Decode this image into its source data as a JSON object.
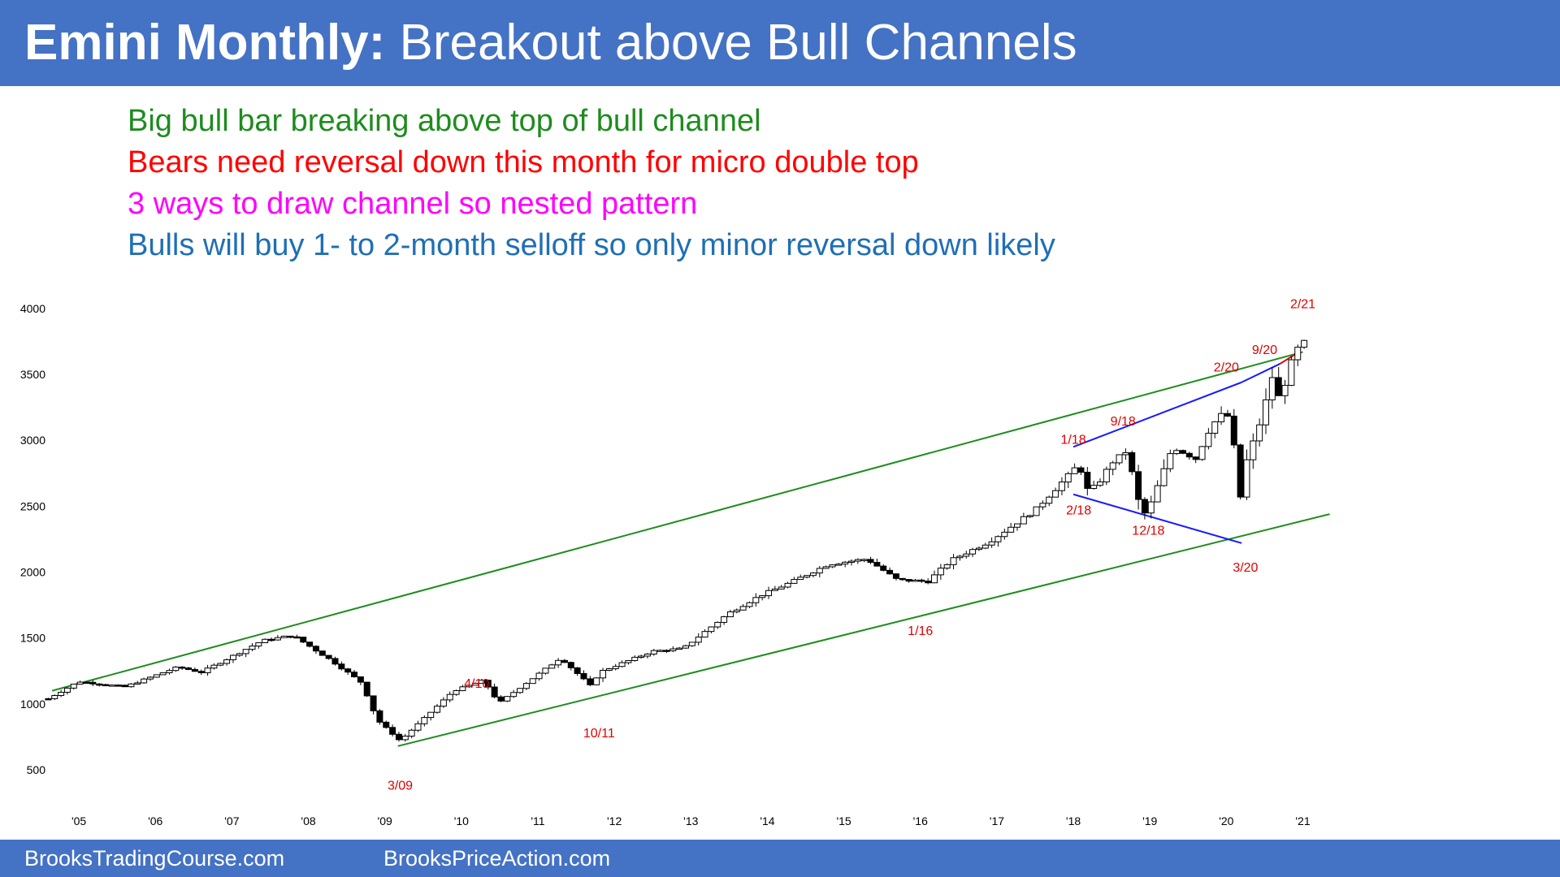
{
  "header": {
    "title_bold": "Emini Monthly:",
    "title_rest": "Breakout above Bull Channels"
  },
  "bullets": [
    {
      "text": "Big bull bar breaking above top of bull channel",
      "color": "#1e8c1e"
    },
    {
      "text": "Bears need reversal down this month for micro double top",
      "color": "#ff0000"
    },
    {
      "text": "3 ways to draw channel so nested pattern",
      "color": "#ff00ff"
    },
    {
      "text": "Bulls will buy 1- to 2-month selloff so only minor reversal down likely",
      "color": "#1f6fb5"
    }
  ],
  "footer": {
    "left": "BrooksTradingCourse.com",
    "right": "BrooksPriceAction.com"
  },
  "colors": {
    "header_bg": "#4472c4",
    "bull_channel": "#1e8c1e",
    "triangle": "#1a1aff",
    "micro_channel": "#e00000",
    "label": "#e00000"
  },
  "chart_data": {
    "type": "candlestick",
    "title": "Emini Monthly",
    "x_tick_labels": [
      "'05",
      "'06",
      "'07",
      "'08",
      "'09",
      "'10",
      "'11",
      "'12",
      "'13",
      "'14",
      "'15",
      "'16",
      "'17",
      "'18",
      "'19",
      "'20",
      "'21"
    ],
    "y_tick_labels": [
      "4000",
      "3500",
      "3000",
      "2500",
      "2000",
      "1500",
      "1000",
      "500"
    ],
    "ylim": [
      180,
      4110
    ],
    "xlim": [
      2004.5,
      2021.6
    ],
    "grid": false,
    "close_path": [
      [
        2004.6,
        1040
      ],
      [
        2005.0,
        1170
      ],
      [
        2005.6,
        1130
      ],
      [
        2006.3,
        1280
      ],
      [
        2006.6,
        1240
      ],
      [
        2007.4,
        1480
      ],
      [
        2007.8,
        1520
      ],
      [
        2008.3,
        1330
      ],
      [
        2008.7,
        1160
      ],
      [
        2008.9,
        880
      ],
      [
        2009.2,
        720
      ],
      [
        2009.9,
        1100
      ],
      [
        2010.3,
        1180
      ],
      [
        2010.4,
        1080
      ],
      [
        2010.5,
        1010
      ],
      [
        2011.3,
        1350
      ],
      [
        2011.7,
        1130
      ],
      [
        2011.8,
        1240
      ],
      [
        2012.5,
        1400
      ],
      [
        2012.9,
        1420
      ],
      [
        2013.5,
        1690
      ],
      [
        2013.9,
        1820
      ],
      [
        2014.3,
        1920
      ],
      [
        2014.8,
        2060
      ],
      [
        2015.3,
        2100
      ],
      [
        2015.7,
        1940
      ],
      [
        2016.1,
        1930
      ],
      [
        2016.4,
        2090
      ],
      [
        2016.9,
        2230
      ],
      [
        2017.5,
        2470
      ],
      [
        2017.98,
        2760
      ],
      [
        2018.08,
        2830
      ],
      [
        2018.15,
        2620
      ],
      [
        2018.3,
        2650
      ],
      [
        2018.5,
        2830
      ],
      [
        2018.7,
        2920
      ],
      [
        2018.9,
        2420
      ],
      [
        2019.0,
        2500
      ],
      [
        2019.3,
        2950
      ],
      [
        2019.6,
        2860
      ],
      [
        2019.8,
        3110
      ],
      [
        2020.0,
        3230
      ],
      [
        2020.1,
        2950
      ],
      [
        2020.17,
        2520
      ],
      [
        2020.25,
        2820
      ],
      [
        2020.45,
        3150
      ],
      [
        2020.6,
        3480
      ],
      [
        2020.7,
        3300
      ],
      [
        2020.8,
        3500
      ],
      [
        2020.9,
        3680
      ],
      [
        2021.0,
        3720
      ],
      [
        2021.08,
        3810
      ]
    ],
    "lines": [
      {
        "name": "bull channel top",
        "color": "green",
        "points": [
          [
            2004.65,
            1100
          ],
          [
            2021.0,
            3670
          ]
        ]
      },
      {
        "name": "bull channel bottom",
        "color": "green",
        "points": [
          [
            2009.17,
            680
          ],
          [
            2021.35,
            2440
          ]
        ]
      },
      {
        "name": "triangle upper",
        "color": "blue",
        "points": [
          [
            2018.0,
            2950
          ],
          [
            2020.2,
            3440
          ]
        ]
      },
      {
        "name": "triangle upper 2",
        "color": "blue",
        "points": [
          [
            2020.2,
            3440
          ],
          [
            2020.7,
            3580
          ]
        ]
      },
      {
        "name": "triangle lower",
        "color": "blue",
        "points": [
          [
            2018.0,
            2590
          ],
          [
            2020.2,
            2220
          ]
        ]
      },
      {
        "name": "micro channel",
        "color": "red",
        "points": [
          [
            2020.7,
            3580
          ],
          [
            2020.95,
            3670
          ]
        ]
      }
    ],
    "annotations": [
      {
        "text": "2/21",
        "x": 2021.0,
        "y": 4040
      },
      {
        "text": "9/20",
        "x": 2020.5,
        "y": 3690
      },
      {
        "text": "2/20",
        "x": 2020.0,
        "y": 3560
      },
      {
        "text": "9/18",
        "x": 2018.65,
        "y": 3150
      },
      {
        "text": "1/18",
        "x": 2018.0,
        "y": 3010
      },
      {
        "text": "2/18",
        "x": 2018.07,
        "y": 2475
      },
      {
        "text": "12/18",
        "x": 2018.98,
        "y": 2320
      },
      {
        "text": "3/20",
        "x": 2020.25,
        "y": 2040
      },
      {
        "text": "1/16",
        "x": 2016.0,
        "y": 1560
      },
      {
        "text": "4/10",
        "x": 2010.2,
        "y": 1160
      },
      {
        "text": "10/11",
        "x": 2011.8,
        "y": 785
      },
      {
        "text": "3/09",
        "x": 2009.2,
        "y": 385
      }
    ]
  }
}
